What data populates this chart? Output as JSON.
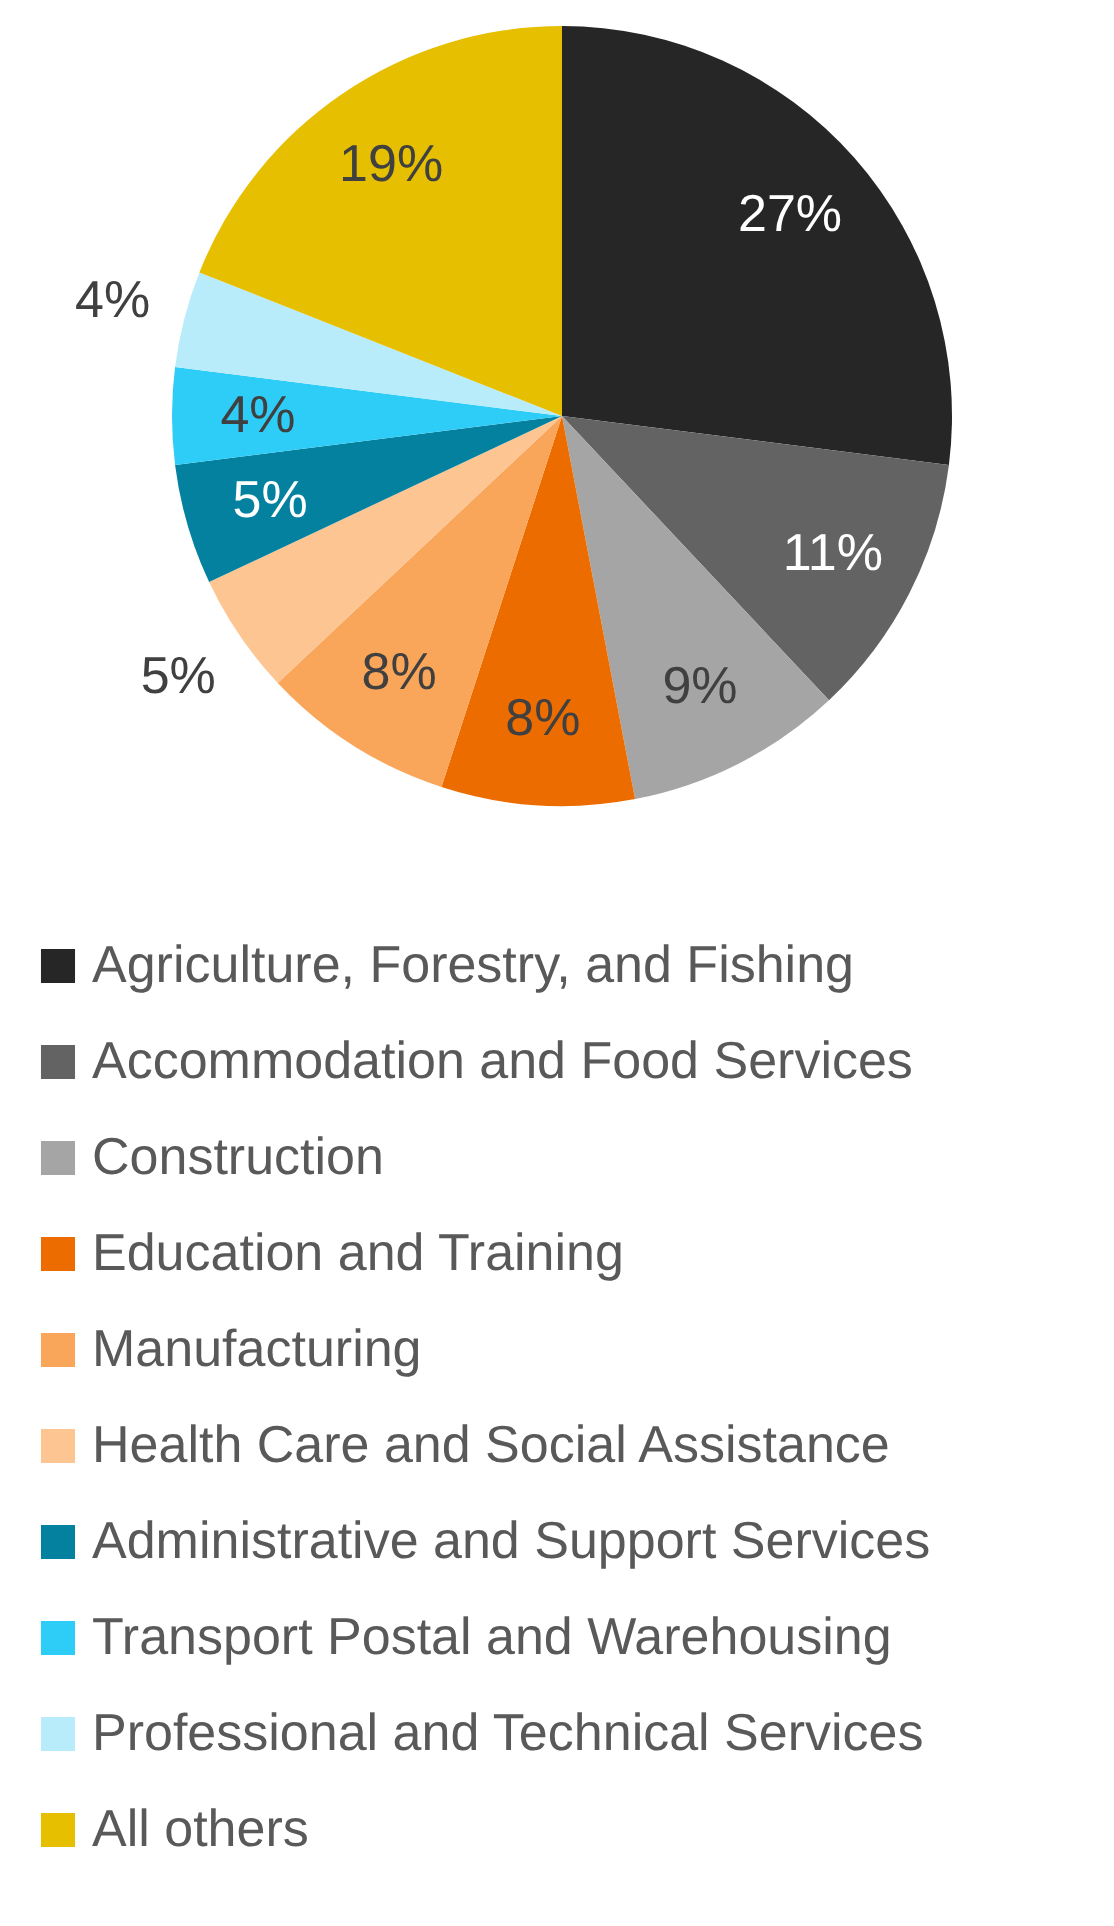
{
  "chart_data": {
    "type": "pie",
    "categories": [
      "Agriculture, Forestry, and Fishing",
      "Accommodation and Food Services",
      "Construction",
      "Education and Training",
      "Manufacturing",
      "Health Care and Social Assistance",
      "Administrative and Support Services",
      "Transport Postal and Warehousing",
      "Professional and Technical Services",
      "All others"
    ],
    "values": [
      27,
      11,
      9,
      8,
      8,
      5,
      5,
      4,
      4,
      19
    ],
    "colors": [
      "#262626",
      "#636363",
      "#a5a5a5",
      "#ec6c00",
      "#f9a65a",
      "#fdc592",
      "#0581a0",
      "#2ecdf7",
      "#b8ecfb",
      "#e6bf00"
    ],
    "value_labels": [
      "27%",
      "11%",
      "9%",
      "8%",
      "8%",
      "5%",
      "5%",
      "4%",
      "4%",
      "19%"
    ],
    "legend": "bottom"
  }
}
